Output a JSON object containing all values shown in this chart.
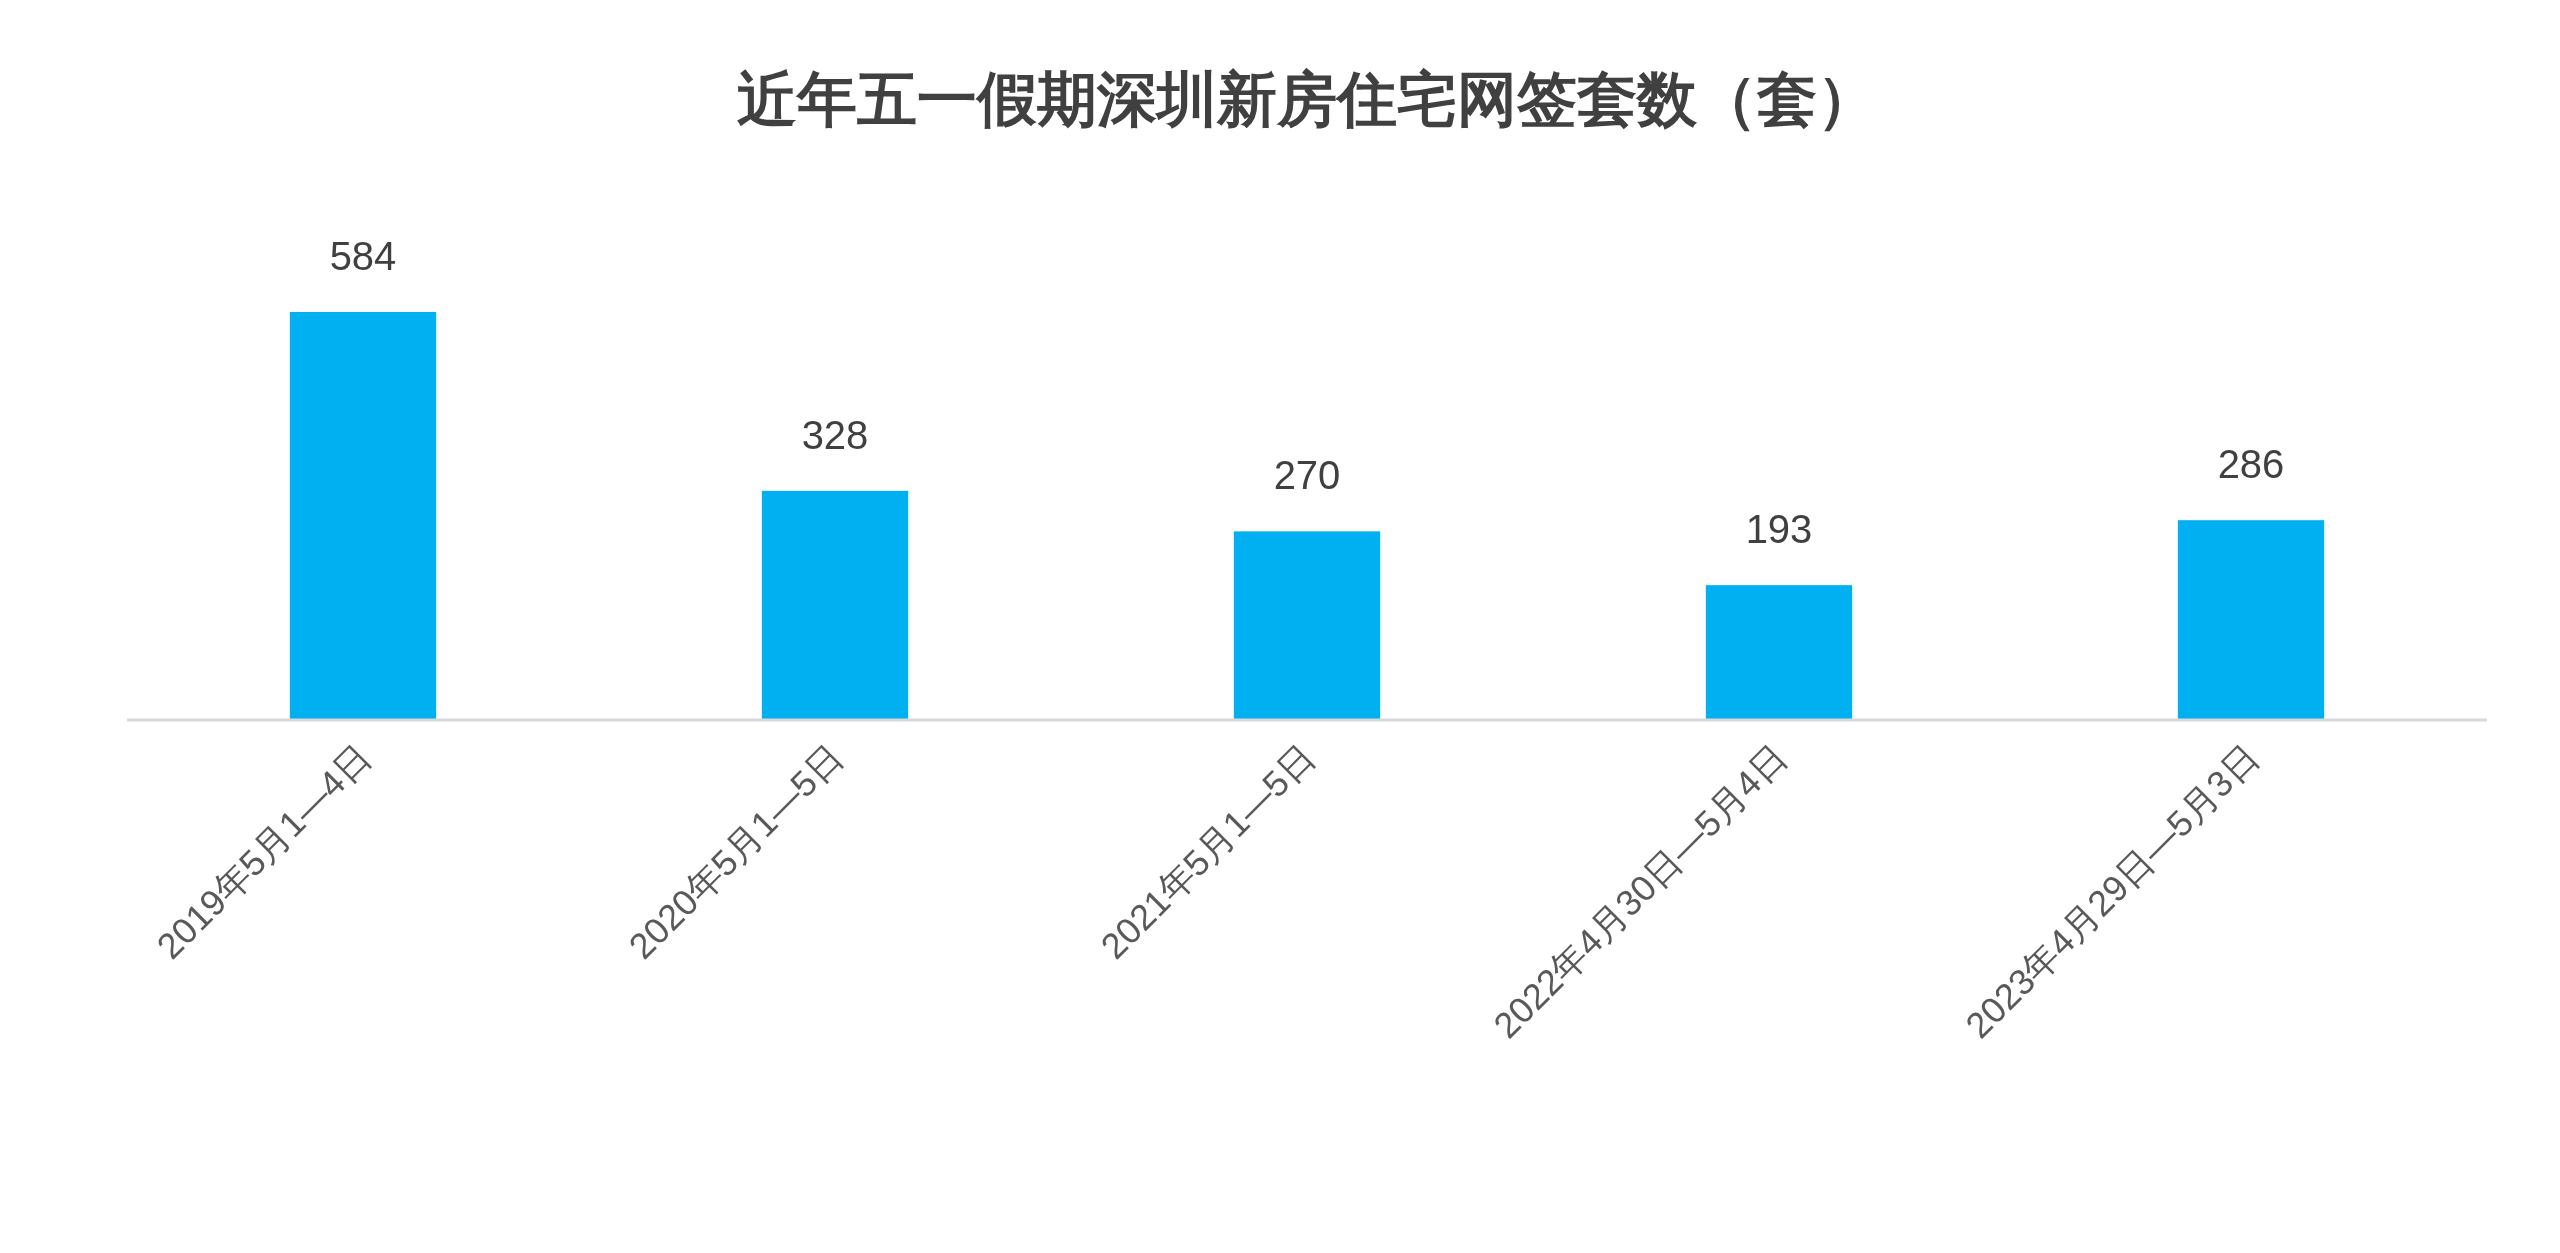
{
  "chart_data": {
    "type": "bar",
    "title": "近年五一假期深圳新房住宅网签套数（套）",
    "categories": [
      "2019年5月1—4日",
      "2020年5月1—5日",
      "2021年5月1—5日",
      "2022年4月30日—5月4日",
      "2023年4月29日—5月3日"
    ],
    "values": [
      584,
      328,
      270,
      193,
      286
    ],
    "color": "#00b0f0",
    "data_labels": true
  }
}
